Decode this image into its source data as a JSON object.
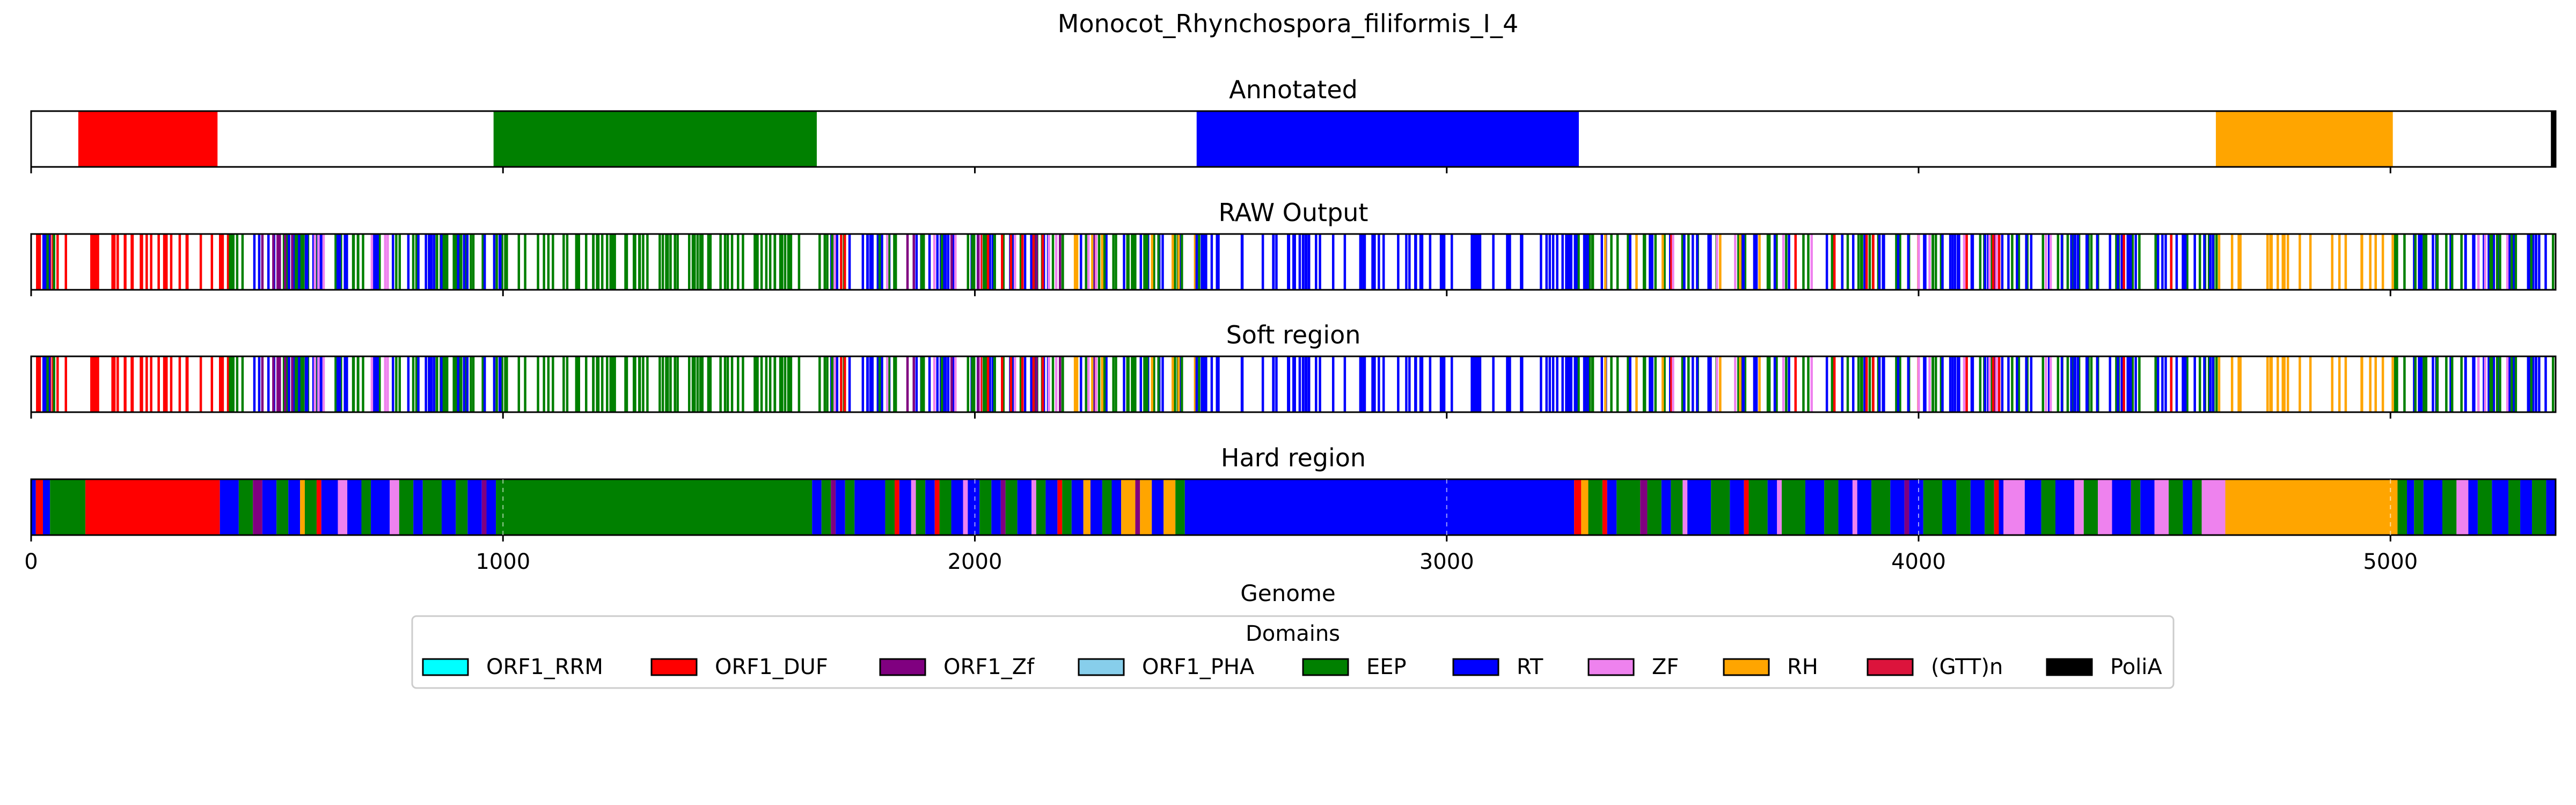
{
  "chart_data": {
    "type": "genome-track",
    "title": "Monocot_Rhynchospora_filiformis_I_4",
    "xlabel": "Genome",
    "xlim": [
      0,
      5350
    ],
    "xticks": [
      0,
      1000,
      2000,
      3000,
      4000,
      5000
    ],
    "xticklabels": [
      "0",
      "1000",
      "2000",
      "3000",
      "4000",
      "5000"
    ],
    "legend": {
      "title": "Domains",
      "placement": "bottom-center",
      "entries": [
        {
          "label": "ORF1_RRM",
          "color": "#00ffff"
        },
        {
          "label": "ORF1_DUF",
          "color": "#ff0000"
        },
        {
          "label": "ORF1_Zf",
          "color": "#800080"
        },
        {
          "label": "ORF1_PHA",
          "color": "#87ceeb"
        },
        {
          "label": "EEP",
          "color": "#008000"
        },
        {
          "label": "RT",
          "color": "#0000ff"
        },
        {
          "label": "ZF",
          "color": "#ee82ee"
        },
        {
          "label": "RH",
          "color": "#ffa500"
        },
        {
          "label": "(GTT)n",
          "color": "#dc143c"
        },
        {
          "label": "PoliA",
          "color": "#000000"
        }
      ]
    },
    "panels": [
      {
        "title": "Annotated",
        "style": "blocks",
        "segments": [
          {
            "domain": "ORF1_DUF",
            "start": 100,
            "end": 395
          },
          {
            "domain": "EEP",
            "start": 980,
            "end": 1665
          },
          {
            "domain": "RT",
            "start": 2470,
            "end": 3280
          },
          {
            "domain": "RH",
            "start": 4630,
            "end": 5005
          },
          {
            "domain": "PoliA",
            "start": 5340,
            "end": 5350
          }
        ]
      },
      {
        "title": "RAW Output",
        "style": "lines",
        "ranges": [
          {
            "domain": "ORF1_DUF",
            "start": 10,
            "end": 420,
            "n": 40
          },
          {
            "domain": "RT",
            "start": 10,
            "end": 40,
            "n": 4
          },
          {
            "domain": "EEP",
            "start": 30,
            "end": 60,
            "n": 2
          },
          {
            "domain": "EEP",
            "start": 420,
            "end": 1700,
            "n": 140
          },
          {
            "domain": "RT",
            "start": 430,
            "end": 1000,
            "n": 40
          },
          {
            "domain": "ORF1_Zf",
            "start": 430,
            "end": 560,
            "n": 6
          },
          {
            "domain": "ZF",
            "start": 600,
            "end": 780,
            "n": 6
          },
          {
            "domain": "RT",
            "start": 1650,
            "end": 2480,
            "n": 55
          },
          {
            "domain": "EEP",
            "start": 1650,
            "end": 2480,
            "n": 50
          },
          {
            "domain": "ORF1_DUF",
            "start": 1700,
            "end": 2350,
            "n": 10
          },
          {
            "domain": "ZF",
            "start": 1700,
            "end": 2400,
            "n": 10
          },
          {
            "domain": "RH",
            "start": 2200,
            "end": 2480,
            "n": 8
          },
          {
            "domain": "ORF1_Zf",
            "start": 1750,
            "end": 2300,
            "n": 6
          },
          {
            "domain": "RT",
            "start": 2470,
            "end": 3300,
            "n": 80
          },
          {
            "domain": "EEP",
            "start": 3260,
            "end": 4640,
            "n": 80
          },
          {
            "domain": "RT",
            "start": 3260,
            "end": 4640,
            "n": 80
          },
          {
            "domain": "ORF1_DUF",
            "start": 3300,
            "end": 4600,
            "n": 12
          },
          {
            "domain": "ZF",
            "start": 3400,
            "end": 4600,
            "n": 12
          },
          {
            "domain": "RH",
            "start": 3300,
            "end": 3700,
            "n": 6
          },
          {
            "domain": "RH",
            "start": 4630,
            "end": 5010,
            "n": 22
          },
          {
            "domain": "RT",
            "start": 5010,
            "end": 5345,
            "n": 30
          },
          {
            "domain": "EEP",
            "start": 5010,
            "end": 5345,
            "n": 20
          },
          {
            "domain": "ZF",
            "start": 5150,
            "end": 5250,
            "n": 3
          }
        ]
      },
      {
        "title": "Soft region",
        "style": "lines",
        "same_as": "RAW Output"
      },
      {
        "title": "Hard region",
        "style": "blocks",
        "segments": [
          {
            "domain": "RT",
            "start": 0,
            "end": 10
          },
          {
            "domain": "ORF1_DUF",
            "start": 10,
            "end": 25
          },
          {
            "domain": "RT",
            "start": 25,
            "end": 40
          },
          {
            "domain": "EEP",
            "start": 40,
            "end": 115
          },
          {
            "domain": "ORF1_DUF",
            "start": 115,
            "end": 400
          },
          {
            "domain": "RT",
            "start": 400,
            "end": 440
          },
          {
            "domain": "EEP",
            "start": 440,
            "end": 470
          },
          {
            "domain": "ORF1_Zf",
            "start": 470,
            "end": 490
          },
          {
            "domain": "RT",
            "start": 490,
            "end": 520
          },
          {
            "domain": "EEP",
            "start": 520,
            "end": 545
          },
          {
            "domain": "RT",
            "start": 545,
            "end": 570
          },
          {
            "domain": "RH",
            "start": 570,
            "end": 580
          },
          {
            "domain": "EEP",
            "start": 580,
            "end": 605
          },
          {
            "domain": "ORF1_DUF",
            "start": 605,
            "end": 615
          },
          {
            "domain": "RT",
            "start": 615,
            "end": 650
          },
          {
            "domain": "ZF",
            "start": 650,
            "end": 670
          },
          {
            "domain": "RT",
            "start": 670,
            "end": 700
          },
          {
            "domain": "EEP",
            "start": 700,
            "end": 720
          },
          {
            "domain": "RT",
            "start": 720,
            "end": 760
          },
          {
            "domain": "ZF",
            "start": 760,
            "end": 780
          },
          {
            "domain": "EEP",
            "start": 780,
            "end": 810
          },
          {
            "domain": "RT",
            "start": 810,
            "end": 830
          },
          {
            "domain": "EEP",
            "start": 830,
            "end": 870
          },
          {
            "domain": "RT",
            "start": 870,
            "end": 900
          },
          {
            "domain": "EEP",
            "start": 900,
            "end": 925
          },
          {
            "domain": "RT",
            "start": 925,
            "end": 955
          },
          {
            "domain": "ORF1_Zf",
            "start": 955,
            "end": 965
          },
          {
            "domain": "RT",
            "start": 965,
            "end": 985
          },
          {
            "domain": "EEP",
            "start": 985,
            "end": 1655
          },
          {
            "domain": "RT",
            "start": 1655,
            "end": 1675
          },
          {
            "domain": "EEP",
            "start": 1675,
            "end": 1695
          },
          {
            "domain": "ORF1_Zf",
            "start": 1695,
            "end": 1705
          },
          {
            "domain": "RT",
            "start": 1705,
            "end": 1725
          },
          {
            "domain": "EEP",
            "start": 1725,
            "end": 1745
          },
          {
            "domain": "RT",
            "start": 1745,
            "end": 1810
          },
          {
            "domain": "EEP",
            "start": 1810,
            "end": 1830
          },
          {
            "domain": "ORF1_DUF",
            "start": 1830,
            "end": 1840
          },
          {
            "domain": "RT",
            "start": 1840,
            "end": 1865
          },
          {
            "domain": "ZF",
            "start": 1865,
            "end": 1875
          },
          {
            "domain": "EEP",
            "start": 1875,
            "end": 1895
          },
          {
            "domain": "RT",
            "start": 1895,
            "end": 1915
          },
          {
            "domain": "ORF1_DUF",
            "start": 1915,
            "end": 1925
          },
          {
            "domain": "EEP",
            "start": 1925,
            "end": 1950
          },
          {
            "domain": "RT",
            "start": 1950,
            "end": 1975
          },
          {
            "domain": "ZF",
            "start": 1975,
            "end": 1985
          },
          {
            "domain": "RT",
            "start": 1985,
            "end": 2010
          },
          {
            "domain": "EEP",
            "start": 2010,
            "end": 2035
          },
          {
            "domain": "RT",
            "start": 2035,
            "end": 2055
          },
          {
            "domain": "ORF1_Zf",
            "start": 2055,
            "end": 2065
          },
          {
            "domain": "EEP",
            "start": 2065,
            "end": 2090
          },
          {
            "domain": "RT",
            "start": 2090,
            "end": 2120
          },
          {
            "domain": "ZF",
            "start": 2120,
            "end": 2130
          },
          {
            "domain": "EEP",
            "start": 2130,
            "end": 2150
          },
          {
            "domain": "RT",
            "start": 2150,
            "end": 2175
          },
          {
            "domain": "ORF1_DUF",
            "start": 2175,
            "end": 2185
          },
          {
            "domain": "EEP",
            "start": 2185,
            "end": 2205
          },
          {
            "domain": "RT",
            "start": 2205,
            "end": 2230
          },
          {
            "domain": "RH",
            "start": 2230,
            "end": 2245
          },
          {
            "domain": "RT",
            "start": 2245,
            "end": 2270
          },
          {
            "domain": "EEP",
            "start": 2270,
            "end": 2290
          },
          {
            "domain": "RT",
            "start": 2290,
            "end": 2310
          },
          {
            "domain": "RH",
            "start": 2310,
            "end": 2340
          },
          {
            "domain": "ORF1_Zf",
            "start": 2340,
            "end": 2350
          },
          {
            "domain": "RH",
            "start": 2350,
            "end": 2375
          },
          {
            "domain": "RT",
            "start": 2375,
            "end": 2400
          },
          {
            "domain": "RH",
            "start": 2400,
            "end": 2425
          },
          {
            "domain": "EEP",
            "start": 2425,
            "end": 2445
          },
          {
            "domain": "RT",
            "start": 2445,
            "end": 3270
          },
          {
            "domain": "ORF1_DUF",
            "start": 3270,
            "end": 3285
          },
          {
            "domain": "RH",
            "start": 3285,
            "end": 3300
          },
          {
            "domain": "EEP",
            "start": 3300,
            "end": 3330
          },
          {
            "domain": "ORF1_DUF",
            "start": 3330,
            "end": 3340
          },
          {
            "domain": "RT",
            "start": 3340,
            "end": 3360
          },
          {
            "domain": "EEP",
            "start": 3360,
            "end": 3410
          },
          {
            "domain": "ORF1_Zf",
            "start": 3410,
            "end": 3425
          },
          {
            "domain": "EEP",
            "start": 3425,
            "end": 3455
          },
          {
            "domain": "RT",
            "start": 3455,
            "end": 3475
          },
          {
            "domain": "EEP",
            "start": 3475,
            "end": 3500
          },
          {
            "domain": "ZF",
            "start": 3500,
            "end": 3510
          },
          {
            "domain": "RT",
            "start": 3510,
            "end": 3560
          },
          {
            "domain": "EEP",
            "start": 3560,
            "end": 3600
          },
          {
            "domain": "RT",
            "start": 3600,
            "end": 3630
          },
          {
            "domain": "ORF1_DUF",
            "start": 3630,
            "end": 3640
          },
          {
            "domain": "EEP",
            "start": 3640,
            "end": 3680
          },
          {
            "domain": "RT",
            "start": 3680,
            "end": 3700
          },
          {
            "domain": "ZF",
            "start": 3700,
            "end": 3710
          },
          {
            "domain": "EEP",
            "start": 3710,
            "end": 3760
          },
          {
            "domain": "RT",
            "start": 3760,
            "end": 3800
          },
          {
            "domain": "EEP",
            "start": 3800,
            "end": 3830
          },
          {
            "domain": "RT",
            "start": 3830,
            "end": 3860
          },
          {
            "domain": "ZF",
            "start": 3860,
            "end": 3870
          },
          {
            "domain": "RT",
            "start": 3870,
            "end": 3900
          },
          {
            "domain": "EEP",
            "start": 3900,
            "end": 3940
          },
          {
            "domain": "RT",
            "start": 3940,
            "end": 3970
          },
          {
            "domain": "ORF1_Zf",
            "start": 3970,
            "end": 3980
          },
          {
            "domain": "RT",
            "start": 3980,
            "end": 4010
          },
          {
            "domain": "EEP",
            "start": 4010,
            "end": 4050
          },
          {
            "domain": "RT",
            "start": 4050,
            "end": 4080
          },
          {
            "domain": "EEP",
            "start": 4080,
            "end": 4110
          },
          {
            "domain": "RT",
            "start": 4110,
            "end": 4140
          },
          {
            "domain": "EEP",
            "start": 4140,
            "end": 4160
          },
          {
            "domain": "ORF1_DUF",
            "start": 4160,
            "end": 4170
          },
          {
            "domain": "RT",
            "start": 4170,
            "end": 4180
          },
          {
            "domain": "ZF",
            "start": 4180,
            "end": 4225
          },
          {
            "domain": "RT",
            "start": 4225,
            "end": 4260
          },
          {
            "domain": "EEP",
            "start": 4260,
            "end": 4290
          },
          {
            "domain": "RT",
            "start": 4290,
            "end": 4330
          },
          {
            "domain": "ZF",
            "start": 4330,
            "end": 4350
          },
          {
            "domain": "EEP",
            "start": 4350,
            "end": 4380
          },
          {
            "domain": "ZF",
            "start": 4380,
            "end": 4410
          },
          {
            "domain": "RT",
            "start": 4410,
            "end": 4450
          },
          {
            "domain": "EEP",
            "start": 4450,
            "end": 4470
          },
          {
            "domain": "RT",
            "start": 4470,
            "end": 4500
          },
          {
            "domain": "ZF",
            "start": 4500,
            "end": 4530
          },
          {
            "domain": "EEP",
            "start": 4530,
            "end": 4560
          },
          {
            "domain": "RT",
            "start": 4560,
            "end": 4580
          },
          {
            "domain": "EEP",
            "start": 4580,
            "end": 4600
          },
          {
            "domain": "ZF",
            "start": 4600,
            "end": 4650
          },
          {
            "domain": "RH",
            "start": 4650,
            "end": 5015
          },
          {
            "domain": "EEP",
            "start": 5015,
            "end": 5035
          },
          {
            "domain": "RT",
            "start": 5035,
            "end": 5050
          },
          {
            "domain": "EEP",
            "start": 5050,
            "end": 5070
          },
          {
            "domain": "RT",
            "start": 5070,
            "end": 5110
          },
          {
            "domain": "EEP",
            "start": 5110,
            "end": 5140
          },
          {
            "domain": "ZF",
            "start": 5140,
            "end": 5165
          },
          {
            "domain": "RT",
            "start": 5165,
            "end": 5185
          },
          {
            "domain": "EEP",
            "start": 5185,
            "end": 5215
          },
          {
            "domain": "RT",
            "start": 5215,
            "end": 5250
          },
          {
            "domain": "EEP",
            "start": 5250,
            "end": 5275
          },
          {
            "domain": "RT",
            "start": 5275,
            "end": 5300
          },
          {
            "domain": "EEP",
            "start": 5300,
            "end": 5330
          },
          {
            "domain": "RT",
            "start": 5330,
            "end": 5350
          }
        ]
      }
    ]
  }
}
